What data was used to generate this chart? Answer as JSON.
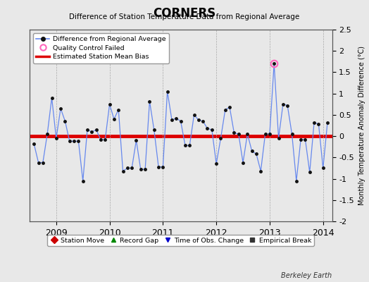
{
  "title": "CORNERS",
  "subtitle": "Difference of Station Temperature Data from Regional Average",
  "ylabel_right": "Monthly Temperature Anomaly Difference (°C)",
  "background_color": "#e8e8e8",
  "plot_bg_color": "#e8e8e8",
  "bias_value": 0.0,
  "ylim": [
    -2.0,
    2.5
  ],
  "yticks": [
    -2.0,
    -1.5,
    -1.0,
    -0.5,
    0.0,
    0.5,
    1.0,
    1.5,
    2.0,
    2.5
  ],
  "ytick_labels": [
    "-2",
    "-1.5",
    "-1",
    "-0.5",
    "0",
    "0.5",
    "1",
    "1.5",
    "2",
    "2.5"
  ],
  "xlim_start": 2008.5,
  "xlim_end": 2014.17,
  "xticks": [
    2009,
    2010,
    2011,
    2012,
    2013,
    2014
  ],
  "line_color": "#6688ee",
  "marker_color": "#111111",
  "bias_color": "#dd0000",
  "qc_fail_index": 54,
  "watermark": "Berkeley Earth",
  "time_values": [
    2008.583,
    2008.667,
    2008.75,
    2008.833,
    2008.917,
    2009.0,
    2009.083,
    2009.167,
    2009.25,
    2009.333,
    2009.417,
    2009.5,
    2009.583,
    2009.667,
    2009.75,
    2009.833,
    2009.917,
    2010.0,
    2010.083,
    2010.167,
    2010.25,
    2010.333,
    2010.417,
    2010.5,
    2010.583,
    2010.667,
    2010.75,
    2010.833,
    2010.917,
    2011.0,
    2011.083,
    2011.167,
    2011.25,
    2011.333,
    2011.417,
    2011.5,
    2011.583,
    2011.667,
    2011.75,
    2011.833,
    2011.917,
    2012.0,
    2012.083,
    2012.167,
    2012.25,
    2012.333,
    2012.417,
    2012.5,
    2012.583,
    2012.667,
    2012.75,
    2012.833,
    2012.917,
    2013.0,
    2013.083,
    2013.167,
    2013.25,
    2013.333,
    2013.417,
    2013.5,
    2013.583,
    2013.667,
    2013.75,
    2013.833,
    2013.917,
    2014.0,
    2014.083
  ],
  "data_values": [
    -0.18,
    -0.62,
    -0.62,
    0.05,
    0.9,
    -0.05,
    0.65,
    0.35,
    -0.12,
    -0.12,
    -0.12,
    -1.05,
    0.15,
    0.1,
    0.15,
    -0.08,
    -0.08,
    0.75,
    0.4,
    0.62,
    -0.82,
    -0.75,
    -0.75,
    -0.1,
    -0.78,
    -0.78,
    0.82,
    0.15,
    -0.72,
    -0.72,
    1.05,
    0.38,
    0.42,
    0.35,
    -0.22,
    -0.22,
    0.5,
    0.38,
    0.35,
    0.18,
    0.15,
    -0.65,
    -0.05,
    0.62,
    0.68,
    0.08,
    0.05,
    -0.62,
    0.05,
    -0.35,
    -0.42,
    -0.82,
    0.05,
    0.05,
    1.7,
    -0.05,
    0.75,
    0.72,
    0.05,
    -1.05,
    -0.08,
    -0.08,
    -0.85,
    0.32,
    0.28,
    -0.75,
    0.32
  ]
}
